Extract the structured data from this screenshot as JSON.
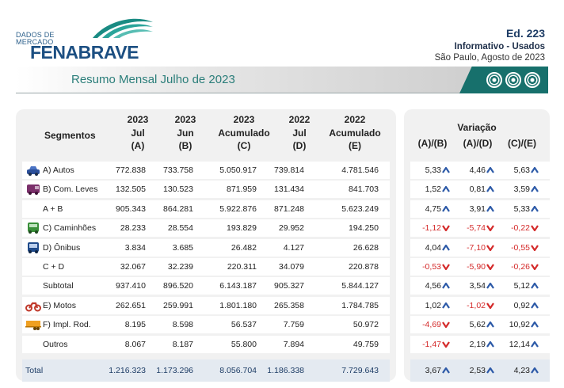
{
  "header": {
    "logo_small": [
      "DADOS DE",
      "MERCADO"
    ],
    "logo_brand": "FENABRAVE",
    "edition": "Ed. 223",
    "informativo": "Informativo - Usados",
    "location_date": "São Paulo, Agosto de 2023",
    "title": "Resumo Mensal Julho de 2023"
  },
  "columns": {
    "segment": "Segmentos",
    "c1": [
      "2023",
      "Jul",
      "(A)"
    ],
    "c2": [
      "2023",
      "Jun",
      "(B)"
    ],
    "c3": [
      "2023",
      "Acumulado",
      "(C)"
    ],
    "c4": [
      "2022",
      "Jul",
      "(D)"
    ],
    "c5": [
      "2022",
      "Acumulado",
      "(E)"
    ]
  },
  "variation": {
    "title": "Variação",
    "cols": [
      "(A)/(B)",
      "(A)/(D)",
      "(C)/(E)"
    ]
  },
  "rows": [
    {
      "label": "A) Autos",
      "icon": "car-icon",
      "values": [
        "772.838",
        "733.758",
        "5.050.917",
        "739.814",
        "4.781.546"
      ],
      "var": [
        {
          "v": "5,33",
          "dir": "up"
        },
        {
          "v": "4,46",
          "dir": "up"
        },
        {
          "v": "5,63",
          "dir": "up"
        }
      ]
    },
    {
      "label": "B) Com. Leves",
      "icon": "van-icon",
      "values": [
        "132.505",
        "130.523",
        "871.959",
        "131.434",
        "841.703"
      ],
      "var": [
        {
          "v": "1,52",
          "dir": "up"
        },
        {
          "v": "0,81",
          "dir": "up"
        },
        {
          "v": "3,59",
          "dir": "up"
        }
      ]
    },
    {
      "label": "A + B",
      "icon": "",
      "values": [
        "905.343",
        "864.281",
        "5.922.876",
        "871.248",
        "5.623.249"
      ],
      "var": [
        {
          "v": "4,75",
          "dir": "up"
        },
        {
          "v": "3,91",
          "dir": "up"
        },
        {
          "v": "5,33",
          "dir": "up"
        }
      ]
    },
    {
      "label": "C) Caminhões",
      "icon": "truck-icon",
      "values": [
        "28.233",
        "28.554",
        "193.829",
        "29.952",
        "194.250"
      ],
      "var": [
        {
          "v": "-1,12",
          "dir": "down"
        },
        {
          "v": "-5,74",
          "dir": "down"
        },
        {
          "v": "-0,22",
          "dir": "down"
        }
      ]
    },
    {
      "label": "D) Ônibus",
      "icon": "bus-icon",
      "values": [
        "3.834",
        "3.685",
        "26.482",
        "4.127",
        "26.628"
      ],
      "var": [
        {
          "v": "4,04",
          "dir": "up"
        },
        {
          "v": "-7,10",
          "dir": "down"
        },
        {
          "v": "-0,55",
          "dir": "down"
        }
      ]
    },
    {
      "label": "C + D",
      "icon": "",
      "values": [
        "32.067",
        "32.239",
        "220.311",
        "34.079",
        "220.878"
      ],
      "var": [
        {
          "v": "-0,53",
          "dir": "down"
        },
        {
          "v": "-5,90",
          "dir": "down"
        },
        {
          "v": "-0,26",
          "dir": "down"
        }
      ]
    },
    {
      "label": "Subtotal",
      "icon": "",
      "values": [
        "937.410",
        "896.520",
        "6.143.187",
        "905.327",
        "5.844.127"
      ],
      "var": [
        {
          "v": "4,56",
          "dir": "up"
        },
        {
          "v": "3,54",
          "dir": "up"
        },
        {
          "v": "5,12",
          "dir": "up"
        }
      ]
    },
    {
      "label": "E) Motos",
      "icon": "motorcycle-icon",
      "values": [
        "262.651",
        "259.991",
        "1.801.180",
        "265.358",
        "1.784.785"
      ],
      "var": [
        {
          "v": "1,02",
          "dir": "up"
        },
        {
          "v": "-1,02",
          "dir": "down"
        },
        {
          "v": "0,92",
          "dir": "up"
        }
      ]
    },
    {
      "label": "F) Impl. Rod.",
      "icon": "trailer-icon",
      "values": [
        "8.195",
        "8.598",
        "56.537",
        "7.759",
        "50.972"
      ],
      "var": [
        {
          "v": "-4,69",
          "dir": "down"
        },
        {
          "v": "5,62",
          "dir": "up"
        },
        {
          "v": "10,92",
          "dir": "up"
        }
      ]
    },
    {
      "label": "Outros",
      "icon": "",
      "values": [
        "8.067",
        "8.187",
        "55.800",
        "7.894",
        "49.759"
      ],
      "var": [
        {
          "v": "-1,47",
          "dir": "down"
        },
        {
          "v": "2,19",
          "dir": "up"
        },
        {
          "v": "12,14",
          "dir": "up"
        }
      ]
    }
  ],
  "total": {
    "label": "Total",
    "values": [
      "1.216.323",
      "1.173.296",
      "8.056.704",
      "1.186.338",
      "7.729.643"
    ],
    "var": [
      {
        "v": "3,67",
        "dir": "up"
      },
      {
        "v": "2,53",
        "dir": "up"
      },
      {
        "v": "4,23",
        "dir": "up"
      }
    ]
  },
  "colors": {
    "up": "#2d5aa8",
    "down": "#d42a2a",
    "accent": "#17706c",
    "brand": "#1c4f82"
  }
}
